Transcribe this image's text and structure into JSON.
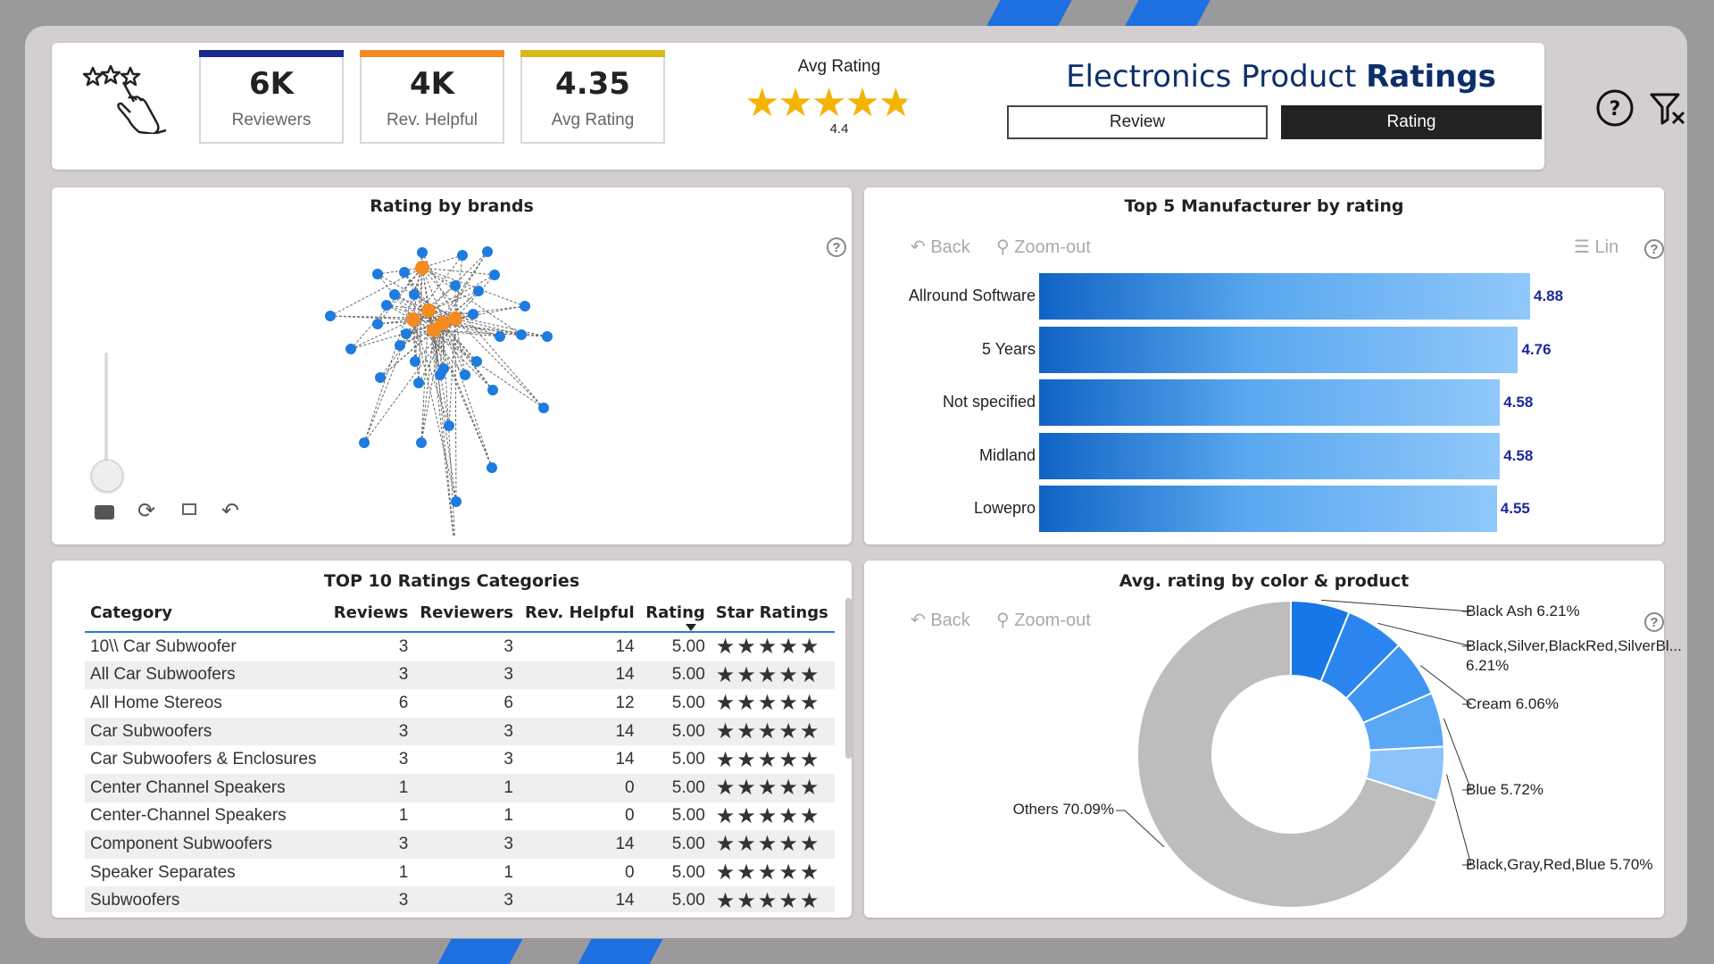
{
  "header": {
    "kpis": [
      {
        "value": "6K",
        "label": "Reviewers",
        "color": "#1b2a8f"
      },
      {
        "value": "4K",
        "label": "Rev. Helpful",
        "color": "#f58a1f"
      },
      {
        "value": "4.35",
        "label": "Avg Rating",
        "color": "#d9b81b"
      }
    ],
    "avg_rating_label": "Avg Rating",
    "avg_rating_value": "4.4",
    "avg_rating_stars": 4.4,
    "title_parts": [
      "Electronics ",
      "Product ",
      "Ratings"
    ],
    "buttons": {
      "review": "Review",
      "rating": "Rating"
    }
  },
  "brands_panel": {
    "title": "Rating by brands"
  },
  "manufacturer_panel": {
    "title": "Top 5 Manufacturer by rating",
    "back": "Back",
    "zoom_out": "Zoom-out",
    "lin": "Lin"
  },
  "categories_panel": {
    "title": "TOP 10 Ratings Categories",
    "columns": [
      "Category",
      "Reviews",
      "Reviewers",
      "Rev. Helpful",
      "Rating",
      "Star Ratings"
    ],
    "rows": [
      [
        "10\\\\ Car Subwoofer",
        "3",
        "3",
        "14",
        "5.00"
      ],
      [
        "All Car Subwoofers",
        "3",
        "3",
        "14",
        "5.00"
      ],
      [
        "All Home Stereos",
        "6",
        "6",
        "12",
        "5.00"
      ],
      [
        "Car Subwoofers",
        "3",
        "3",
        "14",
        "5.00"
      ],
      [
        "Car Subwoofers & Enclosures",
        "3",
        "3",
        "14",
        "5.00"
      ],
      [
        "Center Channel Speakers",
        "1",
        "1",
        "0",
        "5.00"
      ],
      [
        "Center-Channel Speakers",
        "1",
        "1",
        "0",
        "5.00"
      ],
      [
        "Component Subwoofers",
        "3",
        "3",
        "14",
        "5.00"
      ],
      [
        "Speaker Separates",
        "1",
        "1",
        "0",
        "5.00"
      ],
      [
        "Subwoofers",
        "3",
        "3",
        "14",
        "5.00"
      ]
    ],
    "star_glyphs": "★★★★★"
  },
  "color_panel": {
    "title": "Avg. rating by color & product",
    "back": "Back",
    "zoom_out": "Zoom-out"
  },
  "chart_data": [
    {
      "type": "bar",
      "title": "Top 5 Manufacturer by rating",
      "categories": [
        "Allround Software",
        "5 Years",
        "Not specified",
        "Midland",
        "Lowepro"
      ],
      "values": [
        4.88,
        4.76,
        4.58,
        4.58,
        4.55
      ],
      "value_labels": [
        "4.88",
        "4.76",
        "4.58",
        "4.58",
        "4.55"
      ],
      "xlim": [
        0,
        4.88
      ]
    },
    {
      "type": "pie",
      "title": "Avg. rating by color & product",
      "labels": [
        "Black Ash 6.21%",
        "Black,Silver,BlackRed,SilverBl...",
        "6.21%",
        "Cream 6.06%",
        "Blue 5.72%",
        "Black,Gray,Red,Blue 5.70%",
        "Others 70.09%"
      ],
      "slices": [
        {
          "name": "Black Ash",
          "value": 6.21,
          "color": "#1877e6"
        },
        {
          "name": "Black,Silver,BlackRed,SilverBl...",
          "value": 6.21,
          "color": "#2a86ee"
        },
        {
          "name": "Cream",
          "value": 6.06,
          "color": "#3f95f2"
        },
        {
          "name": "Blue",
          "value": 5.72,
          "color": "#5aa7f6"
        },
        {
          "name": "Black,Gray,Red,Blue",
          "value": 5.7,
          "color": "#8cc3fa"
        },
        {
          "name": "Others",
          "value": 70.09,
          "color": "#bdbdbd"
        }
      ]
    }
  ]
}
